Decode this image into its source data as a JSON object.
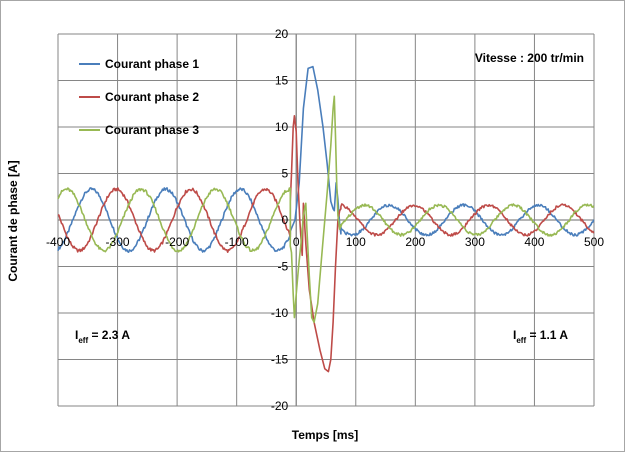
{
  "chart_data": {
    "type": "line",
    "title": "",
    "xlabel": "Temps [ms]",
    "ylabel": "Courant de phase [A]",
    "xlim": [
      -400,
      500
    ],
    "ylim": [
      -20,
      20
    ],
    "x_ticks": [
      -400,
      -300,
      -200,
      -100,
      0,
      100,
      200,
      300,
      400,
      500
    ],
    "y_ticks": [
      -20,
      -15,
      -10,
      -5,
      0,
      5,
      10,
      15,
      20
    ],
    "grid": "both",
    "legend_position": "top-left",
    "steady_state": {
      "before": {
        "amplitude": 3.3,
        "period_ms": 125,
        "x_range": [
          -400,
          -10
        ]
      },
      "after": {
        "amplitude": 1.6,
        "period_ms": 125,
        "x_range": [
          75,
          500
        ]
      }
    },
    "series": [
      {
        "name": "Courant phase 1",
        "color": "#4a7ebb",
        "phase_deg": 0,
        "transient": [
          [
            -10,
            -1.2
          ],
          [
            -2,
            0
          ],
          [
            5,
            4
          ],
          [
            12,
            12
          ],
          [
            20,
            16.3
          ],
          [
            28,
            16.5
          ],
          [
            36,
            14
          ],
          [
            45,
            10
          ],
          [
            52,
            6
          ],
          [
            58,
            2
          ],
          [
            62,
            1.2
          ],
          [
            64,
            1.0
          ],
          [
            67,
            4.0
          ],
          [
            70,
            2.2
          ],
          [
            73,
            -0.5
          ],
          [
            75,
            -1.5
          ]
        ]
      },
      {
        "name": "Courant phase 2",
        "color": "#be4b48",
        "phase_deg": 120,
        "transient": [
          [
            -10,
            2.0
          ],
          [
            -8,
            5
          ],
          [
            -5,
            10
          ],
          [
            -3,
            11.2
          ],
          [
            0,
            9.5
          ],
          [
            3,
            4
          ],
          [
            6,
            0
          ],
          [
            8,
            -2
          ],
          [
            10,
            -3.8
          ],
          [
            12,
            1.8
          ],
          [
            16,
            -2.5
          ],
          [
            22,
            -7.5
          ],
          [
            30,
            -11
          ],
          [
            40,
            -14
          ],
          [
            48,
            -16.0
          ],
          [
            54,
            -16.3
          ],
          [
            58,
            -15
          ],
          [
            62,
            -11
          ],
          [
            66,
            -5
          ],
          [
            70,
            0
          ],
          [
            73,
            1.0
          ],
          [
            75,
            1.2
          ]
        ]
      },
      {
        "name": "Courant phase 3",
        "color": "#98b954",
        "phase_deg": 240,
        "transient": [
          [
            -10,
            -2.8
          ],
          [
            -8,
            -3.5
          ],
          [
            -5,
            -8
          ],
          [
            -3,
            -10.5
          ],
          [
            0,
            -8
          ],
          [
            4,
            -5
          ],
          [
            8,
            -2.5
          ],
          [
            12,
            0.5
          ],
          [
            16,
            1.8
          ],
          [
            18,
            -1.0
          ],
          [
            22,
            -6
          ],
          [
            26,
            -10.5
          ],
          [
            30,
            -11
          ],
          [
            36,
            -9
          ],
          [
            44,
            -3
          ],
          [
            52,
            3
          ],
          [
            58,
            8
          ],
          [
            62,
            12
          ],
          [
            64,
            13.3
          ],
          [
            66,
            9
          ],
          [
            68,
            4
          ],
          [
            70,
            0.5
          ],
          [
            73,
            -1.0
          ],
          [
            75,
            -0.5
          ]
        ]
      }
    ],
    "annotations": {
      "speed": "Vitesse : 200 tr/min",
      "ieff_left": {
        "prefix": "I",
        "sub": "eff",
        "suffix": " = 2.3 A"
      },
      "ieff_right": {
        "prefix": "I",
        "sub": "eff",
        "suffix": " = 1.1 A"
      }
    }
  }
}
